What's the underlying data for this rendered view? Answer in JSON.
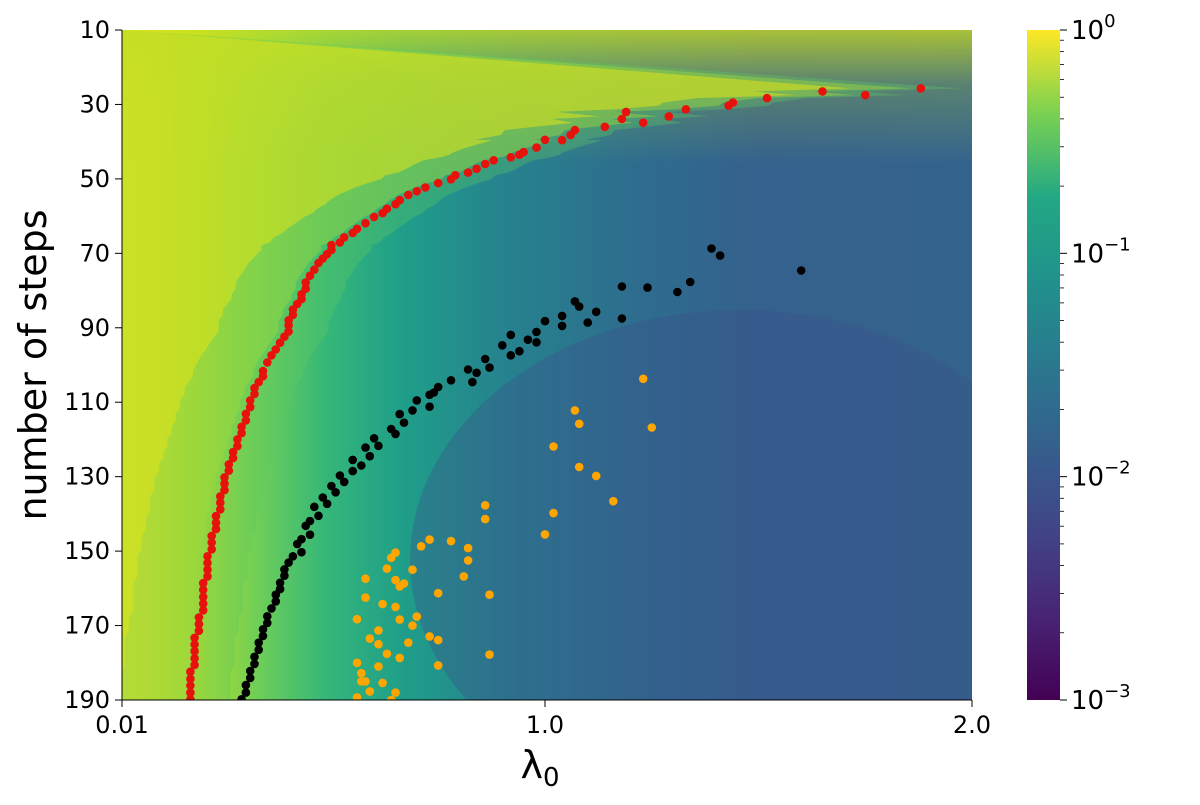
{
  "chart_data": {
    "type": "heatmap",
    "title": "",
    "xlabel": "λ",
    "xlabel_subscript": "0",
    "ylabel": "number of steps",
    "x_ticks": [
      {
        "value": 0.01,
        "label": "0.01"
      },
      {
        "value": 1.0,
        "label": "1.0"
      },
      {
        "value": 2.0,
        "label": "2.0"
      }
    ],
    "xlim": [
      0.01,
      2.0
    ],
    "y_ticks": [
      {
        "value": 10,
        "label": "10"
      },
      {
        "value": 30,
        "label": "30"
      },
      {
        "value": 50,
        "label": "50"
      },
      {
        "value": 70,
        "label": "70"
      },
      {
        "value": 90,
        "label": "90"
      },
      {
        "value": 110,
        "label": "110"
      },
      {
        "value": 130,
        "label": "130"
      },
      {
        "value": 150,
        "label": "150"
      },
      {
        "value": 170,
        "label": "170"
      },
      {
        "value": 190,
        "label": "190"
      }
    ],
    "ylim": [
      10,
      190
    ],
    "y_inverted": true,
    "grid": false,
    "colormap": "viridis",
    "colorbar": {
      "scale": "log",
      "range": [
        0.001,
        1
      ],
      "ticks": [
        {
          "value": 1,
          "base": "10",
          "exp": "0"
        },
        {
          "value": 0.1,
          "base": "10",
          "exp": "−1"
        },
        {
          "value": 0.01,
          "base": "10",
          "exp": "−2"
        },
        {
          "value": 0.001,
          "base": "10",
          "exp": "−3"
        }
      ]
    },
    "series": [
      {
        "color": "#e8120c",
        "points": [
          [
            1.88,
            25.7
          ],
          [
            1.65,
            26.5
          ],
          [
            1.75,
            27.5
          ],
          [
            1.52,
            28.3
          ],
          [
            1.44,
            29.5
          ],
          [
            1.43,
            30.3
          ],
          [
            1.33,
            31.3
          ],
          [
            1.29,
            33.2
          ],
          [
            1.19,
            32.0
          ],
          [
            1.18,
            33.9
          ],
          [
            1.23,
            34.9
          ],
          [
            1.14,
            36.0
          ],
          [
            1.07,
            36.9
          ],
          [
            1.06,
            38.2
          ],
          [
            1.0,
            39.5
          ],
          [
            1.04,
            39.6
          ],
          [
            0.98,
            41.6
          ],
          [
            0.95,
            42.8
          ],
          [
            0.94,
            43.5
          ],
          [
            0.92,
            44.2
          ],
          [
            0.88,
            45.0
          ],
          [
            0.86,
            46.0
          ],
          [
            0.84,
            47.3
          ],
          [
            0.82,
            48.3
          ],
          [
            0.79,
            49.0
          ],
          [
            0.78,
            50.1
          ],
          [
            0.75,
            51.1
          ],
          [
            0.72,
            52.3
          ],
          [
            0.7,
            53.3
          ],
          [
            0.68,
            54.3
          ],
          [
            0.66,
            55.7
          ],
          [
            0.65,
            56.8
          ],
          [
            0.63,
            58.0
          ],
          [
            0.62,
            59.2
          ],
          [
            0.6,
            60.2
          ],
          [
            0.58,
            61.9
          ],
          [
            0.56,
            63.4
          ],
          [
            0.55,
            64.5
          ],
          [
            0.53,
            65.7
          ],
          [
            0.52,
            67.1
          ],
          [
            0.5,
            67.8
          ],
          [
            0.5,
            69.1
          ],
          [
            0.49,
            70.2
          ],
          [
            0.48,
            71.4
          ],
          [
            0.47,
            72.6
          ],
          [
            0.46,
            74.4
          ],
          [
            0.45,
            76.0
          ],
          [
            0.44,
            77.8
          ],
          [
            0.44,
            79.5
          ],
          [
            0.43,
            81.0
          ],
          [
            0.43,
            82.3
          ],
          [
            0.42,
            83.6
          ],
          [
            0.41,
            85.1
          ],
          [
            0.41,
            86.5
          ],
          [
            0.4,
            88.0
          ],
          [
            0.4,
            89.3
          ],
          [
            0.4,
            91.0
          ],
          [
            0.39,
            92.4
          ],
          [
            0.38,
            94.0
          ],
          [
            0.37,
            95.8
          ],
          [
            0.36,
            97.4
          ],
          [
            0.35,
            99.3
          ],
          [
            0.34,
            101.6
          ],
          [
            0.34,
            103.0
          ],
          [
            0.33,
            104.6
          ],
          [
            0.32,
            106.2
          ],
          [
            0.32,
            107.8
          ],
          [
            0.31,
            109.5
          ],
          [
            0.31,
            111.3
          ],
          [
            0.3,
            113.1
          ],
          [
            0.3,
            114.9
          ],
          [
            0.29,
            116.6
          ],
          [
            0.29,
            118.3
          ],
          [
            0.28,
            120.0
          ],
          [
            0.28,
            121.8
          ],
          [
            0.27,
            123.4
          ],
          [
            0.27,
            125.0
          ],
          [
            0.26,
            126.7
          ],
          [
            0.26,
            128.4
          ],
          [
            0.25,
            130.2
          ],
          [
            0.25,
            131.9
          ],
          [
            0.25,
            133.6
          ],
          [
            0.24,
            135.3
          ],
          [
            0.24,
            137.0
          ],
          [
            0.24,
            138.8
          ],
          [
            0.23,
            140.6
          ],
          [
            0.23,
            142.4
          ],
          [
            0.23,
            144.1
          ],
          [
            0.22,
            145.9
          ],
          [
            0.22,
            147.7
          ],
          [
            0.22,
            149.5
          ],
          [
            0.21,
            151.4
          ],
          [
            0.21,
            153.2
          ],
          [
            0.21,
            155.0
          ],
          [
            0.21,
            156.8
          ],
          [
            0.2,
            158.6
          ],
          [
            0.2,
            160.4
          ],
          [
            0.2,
            162.3
          ],
          [
            0.2,
            164.1
          ],
          [
            0.2,
            165.9
          ],
          [
            0.19,
            167.8
          ],
          [
            0.19,
            169.6
          ],
          [
            0.19,
            171.4
          ],
          [
            0.18,
            173.3
          ],
          [
            0.18,
            175.1
          ],
          [
            0.18,
            176.9
          ],
          [
            0.18,
            178.8
          ],
          [
            0.18,
            180.6
          ],
          [
            0.17,
            182.4
          ],
          [
            0.17,
            184.3
          ],
          [
            0.17,
            186.1
          ],
          [
            0.17,
            188.0
          ],
          [
            0.17,
            189.8
          ]
        ]
      },
      {
        "color": "#000000",
        "points": [
          [
            1.39,
            68.7
          ],
          [
            1.41,
            70.6
          ],
          [
            1.6,
            74.6
          ],
          [
            1.34,
            77.7
          ],
          [
            1.24,
            79.2
          ],
          [
            1.31,
            80.4
          ],
          [
            1.18,
            78.9
          ],
          [
            1.18,
            87.5
          ],
          [
            1.07,
            82.9
          ],
          [
            1.08,
            84.3
          ],
          [
            1.12,
            85.7
          ],
          [
            1.04,
            86.8
          ],
          [
            1.1,
            88.6
          ],
          [
            1.04,
            89.5
          ],
          [
            1.0,
            88.2
          ],
          [
            0.98,
            91.1
          ],
          [
            0.92,
            91.9
          ],
          [
            0.96,
            93.2
          ],
          [
            0.98,
            93.9
          ],
          [
            0.9,
            94.7
          ],
          [
            0.94,
            96.3
          ],
          [
            0.92,
            97.4
          ],
          [
            0.86,
            98.4
          ],
          [
            0.87,
            100.7
          ],
          [
            0.82,
            101.2
          ],
          [
            0.84,
            102.1
          ],
          [
            0.83,
            104.6
          ],
          [
            0.78,
            104.1
          ],
          [
            0.75,
            105.9
          ],
          [
            0.74,
            107.4
          ],
          [
            0.73,
            108.0
          ],
          [
            0.7,
            109.5
          ],
          [
            0.73,
            111.2
          ],
          [
            0.69,
            112.2
          ],
          [
            0.66,
            113.2
          ],
          [
            0.67,
            115.5
          ],
          [
            0.64,
            117.2
          ],
          [
            0.65,
            118.5
          ],
          [
            0.6,
            119.7
          ],
          [
            0.61,
            121.7
          ],
          [
            0.58,
            122.2
          ],
          [
            0.59,
            124.5
          ],
          [
            0.55,
            125.5
          ],
          [
            0.57,
            127.0
          ],
          [
            0.55,
            128.5
          ],
          [
            0.52,
            129.7
          ],
          [
            0.53,
            131.4
          ],
          [
            0.5,
            132.5
          ],
          [
            0.51,
            134.2
          ],
          [
            0.48,
            135.6
          ],
          [
            0.49,
            137.3
          ],
          [
            0.46,
            138.1
          ],
          [
            0.47,
            140.5
          ],
          [
            0.45,
            141.9
          ],
          [
            0.44,
            143.2
          ],
          [
            0.45,
            145.6
          ],
          [
            0.43,
            146.8
          ],
          [
            0.42,
            148.1
          ],
          [
            0.43,
            150.3
          ],
          [
            0.41,
            151.4
          ],
          [
            0.4,
            153.1
          ],
          [
            0.39,
            154.9
          ],
          [
            0.39,
            156.6
          ],
          [
            0.38,
            158.5
          ],
          [
            0.38,
            160.2
          ],
          [
            0.37,
            161.7
          ],
          [
            0.37,
            163.5
          ],
          [
            0.36,
            165.4
          ],
          [
            0.35,
            167.5
          ],
          [
            0.35,
            169.3
          ],
          [
            0.34,
            171.0
          ],
          [
            0.34,
            172.8
          ],
          [
            0.33,
            174.6
          ],
          [
            0.33,
            176.5
          ],
          [
            0.32,
            178.4
          ],
          [
            0.32,
            180.3
          ],
          [
            0.31,
            182.2
          ],
          [
            0.31,
            184.1
          ],
          [
            0.3,
            186.0
          ],
          [
            0.3,
            188.0
          ],
          [
            0.29,
            189.8
          ]
        ]
      },
      {
        "color": "#ffa500",
        "points": [
          [
            1.23,
            103.7
          ],
          [
            1.25,
            116.8
          ],
          [
            1.07,
            112.2
          ],
          [
            1.08,
            115.8
          ],
          [
            1.02,
            121.9
          ],
          [
            1.08,
            127.4
          ],
          [
            1.12,
            129.8
          ],
          [
            1.16,
            136.6
          ],
          [
            1.02,
            139.8
          ],
          [
            0.86,
            137.7
          ],
          [
            0.86,
            141.4
          ],
          [
            1.0,
            145.5
          ],
          [
            0.78,
            147.3
          ],
          [
            0.82,
            149.2
          ],
          [
            0.82,
            152.5
          ],
          [
            0.73,
            146.9
          ],
          [
            0.71,
            148.7
          ],
          [
            0.64,
            151.8
          ],
          [
            0.65,
            150.4
          ],
          [
            0.69,
            155.0
          ],
          [
            0.63,
            154.7
          ],
          [
            0.65,
            157.8
          ],
          [
            0.66,
            159.5
          ],
          [
            0.67,
            158.7
          ],
          [
            0.75,
            161.3
          ],
          [
            0.81,
            156.8
          ],
          [
            0.58,
            157.4
          ],
          [
            0.58,
            162.5
          ],
          [
            0.62,
            164.2
          ],
          [
            0.65,
            165.0
          ],
          [
            0.66,
            168.4
          ],
          [
            0.7,
            167.6
          ],
          [
            0.69,
            170.0
          ],
          [
            0.59,
            173.5
          ],
          [
            0.56,
            168.3
          ],
          [
            0.61,
            171.3
          ],
          [
            0.61,
            175.0
          ],
          [
            0.68,
            174.6
          ],
          [
            0.73,
            172.9
          ],
          [
            0.75,
            173.9
          ],
          [
            0.87,
            161.7
          ],
          [
            0.63,
            177.6
          ],
          [
            0.66,
            178.7
          ],
          [
            0.56,
            180.0
          ],
          [
            0.61,
            181.0
          ],
          [
            0.75,
            180.7
          ],
          [
            0.57,
            182.8
          ],
          [
            0.58,
            185.0
          ],
          [
            0.62,
            185.4
          ],
          [
            0.59,
            187.7
          ],
          [
            0.65,
            188.0
          ],
          [
            0.64,
            190.0
          ],
          [
            0.56,
            189.3
          ],
          [
            0.87,
            177.8
          ],
          [
            0.57,
            185.0
          ]
        ]
      }
    ]
  }
}
